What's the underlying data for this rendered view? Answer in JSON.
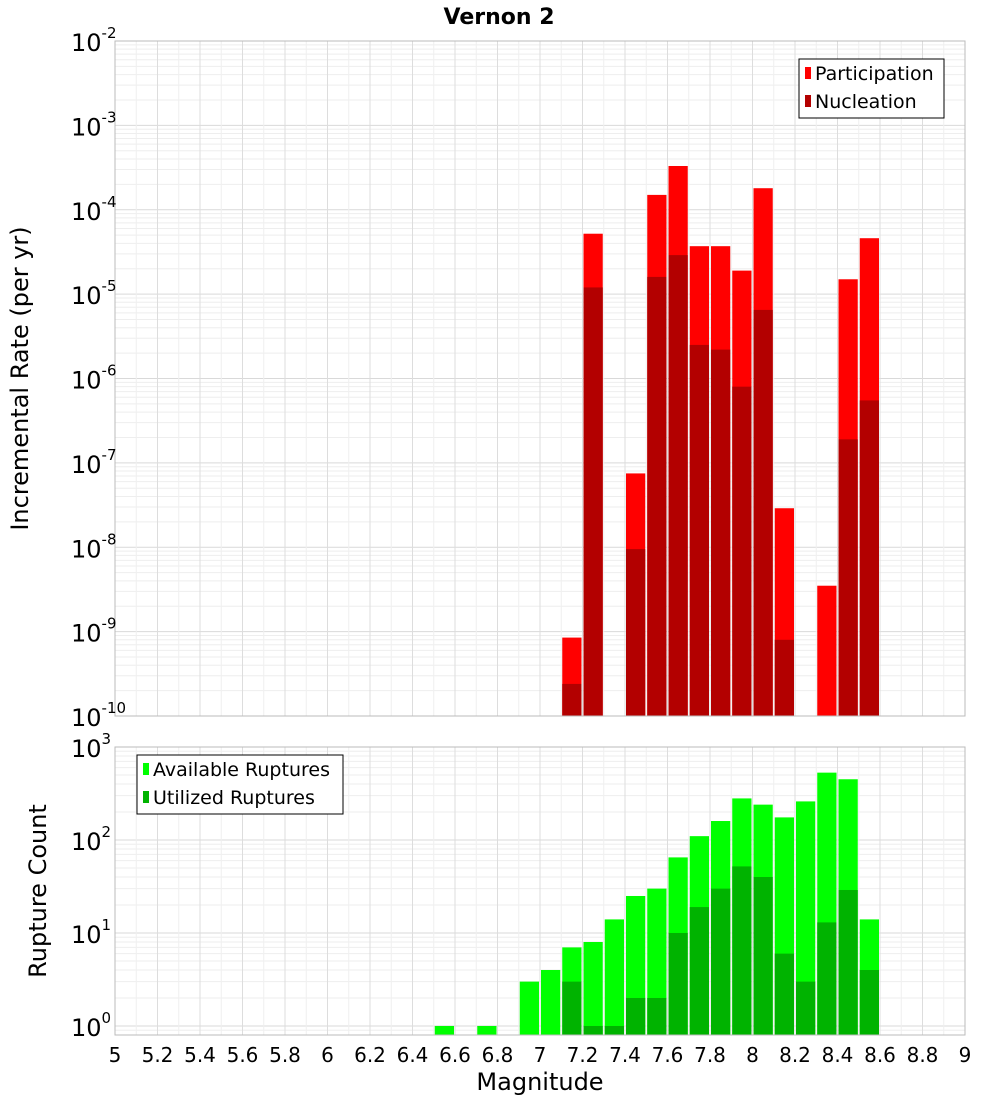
{
  "chart_data": {
    "title": "Vernon 2",
    "xlabel": "Magnitude",
    "xlim": [
      5,
      9
    ],
    "x_ticks": [
      "5",
      "5.2",
      "5.4",
      "5.6",
      "5.8",
      "6",
      "6.2",
      "6.4",
      "6.6",
      "6.8",
      "7",
      "7.2",
      "7.4",
      "7.6",
      "7.8",
      "8",
      "8.2",
      "8.4",
      "8.6",
      "8.8",
      "9"
    ],
    "bin_width": 0.1,
    "panels": [
      {
        "type": "bar",
        "scale": "log",
        "ylabel": "Incremental Rate (per yr)",
        "ylim": [
          1e-10,
          0.01
        ],
        "y_ticks": [
          {
            "base": "10",
            "exp": "-2",
            "value": 0.01
          },
          {
            "base": "10",
            "exp": "-3",
            "value": 0.001
          },
          {
            "base": "10",
            "exp": "-4",
            "value": 0.0001
          },
          {
            "base": "10",
            "exp": "-5",
            "value": 1e-05
          },
          {
            "base": "10",
            "exp": "-6",
            "value": 1e-06
          },
          {
            "base": "10",
            "exp": "-7",
            "value": 1e-07
          },
          {
            "base": "10",
            "exp": "-8",
            "value": 1e-08
          },
          {
            "base": "10",
            "exp": "-9",
            "value": 1e-09
          },
          {
            "base": "10",
            "exp": "-10",
            "value": 1e-10
          }
        ],
        "grid": true,
        "legend": "top-right",
        "series": [
          {
            "name": "Participation",
            "color": "#ff0000",
            "points": [
              {
                "x": 7.15,
                "y": 8.5e-10
              },
              {
                "x": 7.25,
                "y": 5.2e-05
              },
              {
                "x": 7.45,
                "y": 7.5e-08
              },
              {
                "x": 7.55,
                "y": 0.00015
              },
              {
                "x": 7.65,
                "y": 0.00033
              },
              {
                "x": 7.75,
                "y": 3.7e-05
              },
              {
                "x": 7.85,
                "y": 3.7e-05
              },
              {
                "x": 7.95,
                "y": 1.9e-05
              },
              {
                "x": 8.05,
                "y": 0.00018
              },
              {
                "x": 8.15,
                "y": 2.9e-08
              },
              {
                "x": 8.35,
                "y": 3.5e-09
              },
              {
                "x": 8.45,
                "y": 1.5e-05
              },
              {
                "x": 8.55,
                "y": 4.6e-05
              }
            ]
          },
          {
            "name": "Nucleation",
            "color": "#b30000",
            "points": [
              {
                "x": 7.15,
                "y": 2.4e-10
              },
              {
                "x": 7.25,
                "y": 1.2e-05
              },
              {
                "x": 7.45,
                "y": 9.5e-09
              },
              {
                "x": 7.55,
                "y": 1.6e-05
              },
              {
                "x": 7.65,
                "y": 2.9e-05
              },
              {
                "x": 7.75,
                "y": 2.5e-06
              },
              {
                "x": 7.85,
                "y": 2.2e-06
              },
              {
                "x": 7.95,
                "y": 8e-07
              },
              {
                "x": 8.05,
                "y": 6.5e-06
              },
              {
                "x": 8.15,
                "y": 8e-10
              },
              {
                "x": 8.45,
                "y": 1.9e-07
              },
              {
                "x": 8.55,
                "y": 5.5e-07
              }
            ]
          }
        ]
      },
      {
        "type": "bar",
        "scale": "log",
        "ylabel": "Rupture Count",
        "ylim": [
          0.8,
          1000
        ],
        "y_ticks": [
          {
            "base": "10",
            "exp": "3",
            "value": 1000
          },
          {
            "base": "10",
            "exp": "2",
            "value": 100
          },
          {
            "base": "10",
            "exp": "1",
            "value": 10
          },
          {
            "base": "10",
            "exp": "0",
            "value": 1
          }
        ],
        "grid": true,
        "legend": "top-left",
        "series": [
          {
            "name": "Available Ruptures",
            "color": "#00ff00",
            "points": [
              {
                "x": 6.55,
                "y": 1
              },
              {
                "x": 6.75,
                "y": 1
              },
              {
                "x": 6.95,
                "y": 3
              },
              {
                "x": 7.05,
                "y": 4
              },
              {
                "x": 7.15,
                "y": 7
              },
              {
                "x": 7.25,
                "y": 8
              },
              {
                "x": 7.35,
                "y": 14
              },
              {
                "x": 7.45,
                "y": 25
              },
              {
                "x": 7.55,
                "y": 30
              },
              {
                "x": 7.65,
                "y": 65
              },
              {
                "x": 7.75,
                "y": 110
              },
              {
                "x": 7.85,
                "y": 160
              },
              {
                "x": 7.95,
                "y": 280
              },
              {
                "x": 8.05,
                "y": 240
              },
              {
                "x": 8.15,
                "y": 175
              },
              {
                "x": 8.25,
                "y": 260
              },
              {
                "x": 8.35,
                "y": 530
              },
              {
                "x": 8.45,
                "y": 450
              },
              {
                "x": 8.55,
                "y": 14
              }
            ]
          },
          {
            "name": "Utilized Ruptures",
            "color": "#00b300",
            "points": [
              {
                "x": 7.15,
                "y": 3
              },
              {
                "x": 7.25,
                "y": 1
              },
              {
                "x": 7.35,
                "y": 1
              },
              {
                "x": 7.45,
                "y": 2
              },
              {
                "x": 7.55,
                "y": 2
              },
              {
                "x": 7.65,
                "y": 10
              },
              {
                "x": 7.75,
                "y": 19
              },
              {
                "x": 7.85,
                "y": 30
              },
              {
                "x": 7.95,
                "y": 52
              },
              {
                "x": 8.05,
                "y": 40
              },
              {
                "x": 8.15,
                "y": 6
              },
              {
                "x": 8.25,
                "y": 3
              },
              {
                "x": 8.35,
                "y": 13
              },
              {
                "x": 8.45,
                "y": 29
              },
              {
                "x": 8.55,
                "y": 4
              }
            ]
          }
        ]
      }
    ]
  }
}
